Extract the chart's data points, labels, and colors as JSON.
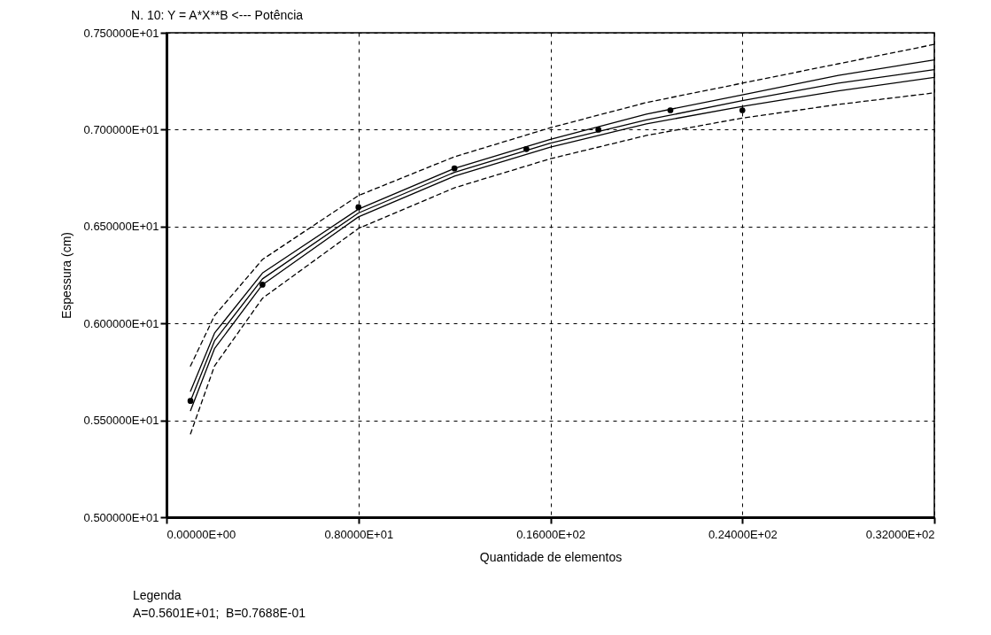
{
  "chart_data": {
    "type": "line",
    "title": "N. 10:  Y = A*X**B <--- Potência",
    "xlabel": "Quantidade de elementos",
    "ylabel": "Espessura (cm)",
    "xlim": [
      0,
      32
    ],
    "ylim": [
      5.0,
      7.5
    ],
    "xticks": [
      {
        "value": 0,
        "label": "0.00000E+00"
      },
      {
        "value": 8,
        "label": "0.80000E+01"
      },
      {
        "value": 16,
        "label": "0.16000E+02"
      },
      {
        "value": 24,
        "label": "0.24000E+02"
      },
      {
        "value": 32,
        "label": "0.32000E+02"
      }
    ],
    "yticks": [
      {
        "value": 5.0,
        "label": "0.500000E+01"
      },
      {
        "value": 5.5,
        "label": "0.550000E+01"
      },
      {
        "value": 6.0,
        "label": "0.600000E+01"
      },
      {
        "value": 6.5,
        "label": "0.650000E+01"
      },
      {
        "value": 7.0,
        "label": "0.700000E+01"
      },
      {
        "value": 7.5,
        "label": "0.750000E+01"
      }
    ],
    "grid": true,
    "series": [
      {
        "type": "scatter",
        "marker": "circle",
        "color": "#000000",
        "x": [
          1,
          4,
          8,
          12,
          15,
          18,
          21,
          24
        ],
        "values": [
          5.6,
          6.2,
          6.6,
          6.8,
          6.9,
          7.0,
          7.1,
          7.1
        ]
      },
      {
        "line_style": "solid",
        "color": "#000000",
        "x": [
          1,
          2,
          4,
          8,
          12,
          16,
          20,
          24,
          28,
          32
        ],
        "values": [
          5.6,
          5.91,
          6.23,
          6.57,
          6.78,
          6.93,
          7.05,
          7.15,
          7.24,
          7.31
        ]
      },
      {
        "line_style": "solid",
        "color": "#000000",
        "x": [
          1,
          2,
          4,
          8,
          12,
          16,
          20,
          24,
          28,
          32
        ],
        "values": [
          5.65,
          5.95,
          6.26,
          6.59,
          6.8,
          6.95,
          7.08,
          7.18,
          7.28,
          7.36
        ]
      },
      {
        "line_style": "solid",
        "color": "#000000",
        "x": [
          1,
          2,
          4,
          8,
          12,
          16,
          20,
          24,
          28,
          32
        ],
        "values": [
          5.55,
          5.87,
          6.2,
          6.55,
          6.76,
          6.91,
          7.03,
          7.12,
          7.2,
          7.27
        ]
      },
      {
        "line_style": "dashed",
        "color": "#000000",
        "x": [
          1,
          2,
          4,
          8,
          12,
          16,
          20,
          24,
          28,
          32
        ],
        "values": [
          5.78,
          6.04,
          6.33,
          6.66,
          6.86,
          7.01,
          7.14,
          7.24,
          7.34,
          7.44
        ]
      },
      {
        "line_style": "dashed",
        "color": "#000000",
        "x": [
          1,
          2,
          4,
          8,
          12,
          16,
          20,
          24,
          28,
          32
        ],
        "values": [
          5.43,
          5.78,
          6.13,
          6.49,
          6.7,
          6.85,
          6.97,
          7.06,
          7.13,
          7.19
        ]
      }
    ],
    "annotations": [
      "Legenda",
      "A=0.5601E+01;  B=0.7688E-01"
    ]
  }
}
